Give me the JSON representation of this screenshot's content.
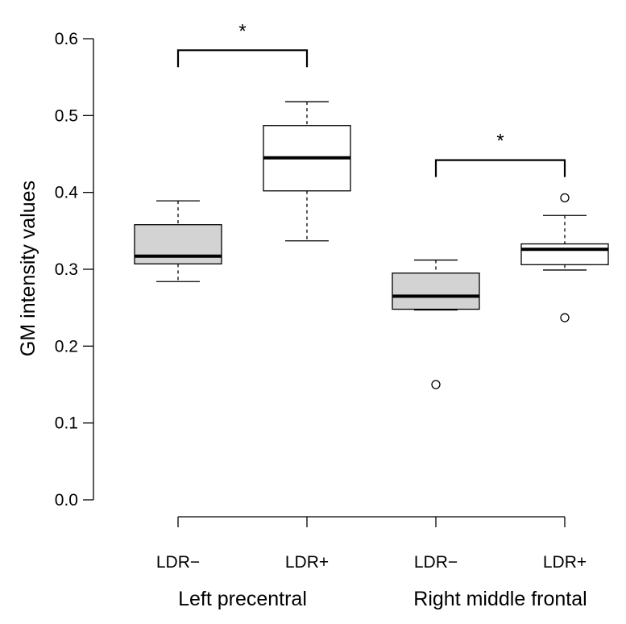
{
  "chart_data": {
    "type": "boxplot",
    "title": "",
    "xlabel": "",
    "ylabel": "GM intensity values",
    "ylim": [
      0.0,
      0.6
    ],
    "yticks": [
      "0.0",
      "0.1",
      "0.2",
      "0.3",
      "0.4",
      "0.5",
      "0.6"
    ],
    "grid": false,
    "groups": [
      {
        "name": "Left precentral",
        "categories": [
          0,
          1
        ]
      },
      {
        "name": "Right middle frontal",
        "categories": [
          2,
          3
        ]
      }
    ],
    "categories": [
      "LDR−",
      "LDR+",
      "LDR−",
      "LDR+"
    ],
    "boxes": [
      {
        "label": "LDR−",
        "group": "Left precentral",
        "fill": "#d3d3d3",
        "whisker_low": 0.284,
        "q1": 0.307,
        "median": 0.317,
        "q3": 0.358,
        "whisker_high": 0.389,
        "outliers": []
      },
      {
        "label": "LDR+",
        "group": "Left precentral",
        "fill": "#ffffff",
        "whisker_low": 0.337,
        "q1": 0.402,
        "median": 0.445,
        "q3": 0.487,
        "whisker_high": 0.518,
        "outliers": []
      },
      {
        "label": "LDR−",
        "group": "Right middle frontal",
        "fill": "#d3d3d3",
        "whisker_low": 0.247,
        "q1": 0.248,
        "median": 0.265,
        "q3": 0.295,
        "whisker_high": 0.312,
        "outliers": [
          0.15
        ]
      },
      {
        "label": "LDR+",
        "group": "Right middle frontal",
        "fill": "#ffffff",
        "whisker_low": 0.299,
        "q1": 0.306,
        "median": 0.326,
        "q3": 0.333,
        "whisker_high": 0.37,
        "outliers": [
          0.393,
          0.237
        ]
      }
    ],
    "significance": [
      {
        "from": 0,
        "to": 1,
        "label": "*",
        "y": 0.585
      },
      {
        "from": 2,
        "to": 3,
        "label": "*",
        "y": 0.442
      }
    ]
  }
}
